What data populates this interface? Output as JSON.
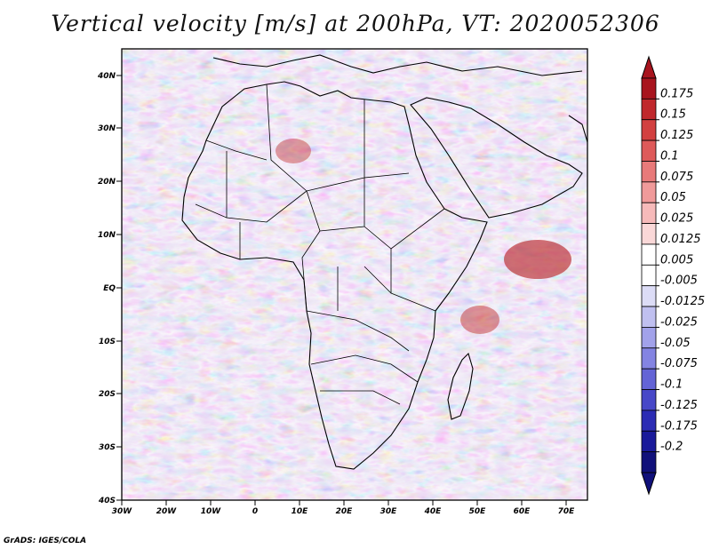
{
  "title": "Vertical velocity [m/s] at 200hPa, VT: 2020052306",
  "credit": "GrADS: IGES/COLA",
  "map": {
    "lat_labels": [
      "40N",
      "30N",
      "20N",
      "10N",
      "EQ",
      "10S",
      "20S",
      "30S",
      "40S"
    ],
    "lon_labels": [
      "30W",
      "20W",
      "10W",
      "0",
      "10E",
      "20E",
      "30E",
      "40E",
      "50E",
      "60E",
      "70E"
    ],
    "extent": {
      "lon": [
        -30,
        75
      ],
      "lat": [
        -40,
        45
      ]
    }
  },
  "colorbar": {
    "labels": [
      "0.175",
      "0.15",
      "0.125",
      "0.1",
      "0.075",
      "0.05",
      "0.025",
      "0.0125",
      "0.005",
      "-0.005",
      "-0.0125",
      "-0.025",
      "-0.05",
      "-0.075",
      "-0.1",
      "-0.125",
      "-0.175",
      "-0.2"
    ],
    "colors": [
      "#a8141e",
      "#c0282c",
      "#d24040",
      "#de5a5a",
      "#e87a7a",
      "#f09a9a",
      "#f6baba",
      "#fad8d8",
      "#ffffff",
      "#ffffff",
      "#dcdcf6",
      "#c0c0f0",
      "#a2a2ea",
      "#8484e2",
      "#6464d6",
      "#4848c8",
      "#2c2cb4",
      "#1a1a9a",
      "#10107a"
    ]
  },
  "colors": {
    "land_outline": "#000000",
    "positive": "#e06060",
    "negative": "#6a6ad8"
  }
}
